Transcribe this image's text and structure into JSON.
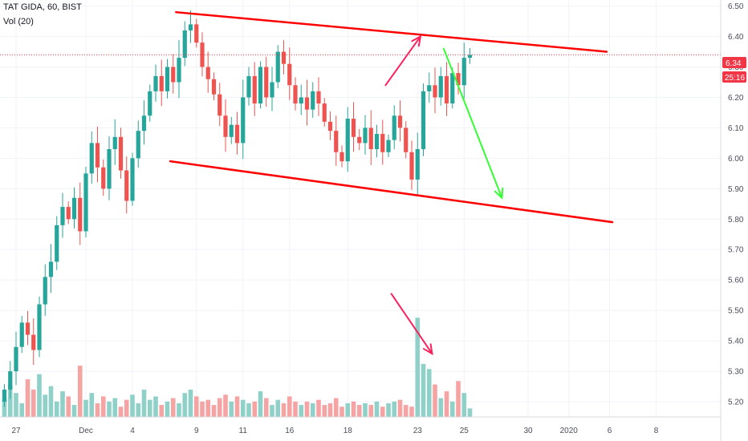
{
  "header": {
    "title": "TAT GIDA, 60, BIST",
    "volume_label": "Vol (20)"
  },
  "price_badge": {
    "value": "6.34",
    "countdown": "25:16",
    "color": "#f23645"
  },
  "colors": {
    "up": "#26a69a",
    "down": "#ef5350",
    "vol_up": "#8fd1c9",
    "vol_down": "#f5a3a3",
    "channel": "#ff0000",
    "arrow_up": "#ff1f5a",
    "arrow_down": "#33ff33",
    "price_line": "#f23645"
  },
  "chart_data": {
    "type": "candlestick",
    "symbol": "TAT GIDA",
    "interval": "60",
    "exchange": "BIST",
    "ylim": [
      5.15,
      6.52
    ],
    "y_ticks": [
      "6.50",
      "6.40",
      "6.30",
      "6.20",
      "6.10",
      "6.00",
      "5.90",
      "5.80",
      "5.70",
      "5.60",
      "5.50",
      "5.40",
      "5.30",
      "5.20"
    ],
    "x_ticks": [
      {
        "label": "27",
        "bar": 2
      },
      {
        "label": "Dec",
        "bar": 14
      },
      {
        "label": "4",
        "bar": 22
      },
      {
        "label": "9",
        "bar": 33
      },
      {
        "label": "11",
        "bar": 41
      },
      {
        "label": "16",
        "bar": 49
      },
      {
        "label": "18",
        "bar": 59
      },
      {
        "label": "23",
        "bar": 71
      },
      {
        "label": "25",
        "bar": 79
      },
      {
        "label": "30",
        "bar": 90
      },
      {
        "label": "2020",
        "bar": 97
      },
      {
        "label": "6",
        "bar": 104
      },
      {
        "label": "8",
        "bar": 112
      }
    ],
    "last_price": 6.34,
    "close": [
      5.24,
      5.3,
      5.38,
      5.46,
      5.42,
      5.37,
      5.52,
      5.61,
      5.66,
      5.78,
      5.84,
      5.8,
      5.87,
      5.76,
      5.95,
      6.05,
      5.97,
      5.9,
      6.03,
      6.07,
      5.96,
      5.86,
      6.0,
      6.09,
      6.14,
      6.22,
      6.27,
      6.22,
      6.3,
      6.25,
      6.33,
      6.42,
      6.44,
      6.38,
      6.3,
      6.26,
      6.21,
      6.14,
      6.07,
      6.11,
      6.05,
      6.2,
      6.27,
      6.18,
      6.3,
      6.2,
      6.25,
      6.35,
      6.31,
      6.24,
      6.18,
      6.2,
      6.16,
      6.22,
      6.18,
      6.12,
      6.09,
      6.02,
      5.99,
      6.13,
      6.07,
      6.05,
      6.1,
      6.03,
      6.08,
      6.02,
      6.06,
      6.14,
      6.1,
      6.02,
      5.93,
      6.03,
      6.22,
      6.24,
      6.2,
      6.27,
      6.18,
      6.28,
      6.24,
      6.33,
      6.34
    ],
    "volume": [
      11,
      19,
      14,
      8,
      22,
      16,
      25,
      13,
      18,
      9,
      15,
      12,
      7,
      30,
      10,
      14,
      8,
      12,
      9,
      11,
      6,
      10,
      13,
      8,
      16,
      10,
      12,
      7,
      9,
      11,
      8,
      14,
      16,
      12,
      9,
      10,
      7,
      11,
      13,
      9,
      12,
      10,
      8,
      9,
      15,
      11,
      7,
      10,
      8,
      12,
      9,
      7,
      9,
      8,
      10,
      7,
      8,
      11,
      6,
      8,
      9,
      7,
      8,
      7,
      9,
      6,
      8,
      9,
      10,
      7,
      6,
      58,
      31,
      28,
      19,
      11,
      15,
      9,
      21,
      14,
      5
    ],
    "drawings": {
      "channel_upper": {
        "from": {
          "bar": 29.5,
          "price": 6.48
        },
        "to": {
          "bar": 103.5,
          "price": 6.35
        }
      },
      "channel_lower": {
        "from": {
          "bar": 28.5,
          "price": 5.99
        },
        "to": {
          "bar": 104.5,
          "price": 5.79
        }
      },
      "arrow_up": {
        "from": {
          "bar": 65.5,
          "price": 6.24
        },
        "to": {
          "bar": 71.5,
          "price": 6.4
        }
      },
      "arrow_down": {
        "from": {
          "bar": 75.5,
          "price": 6.36
        },
        "to": {
          "bar": 85.5,
          "price": 5.87
        }
      },
      "volume_arrow": {
        "from": {
          "bar": 66.5,
          "vol": 72
        },
        "to": {
          "bar": 73.5,
          "vol": 37
        }
      }
    }
  }
}
